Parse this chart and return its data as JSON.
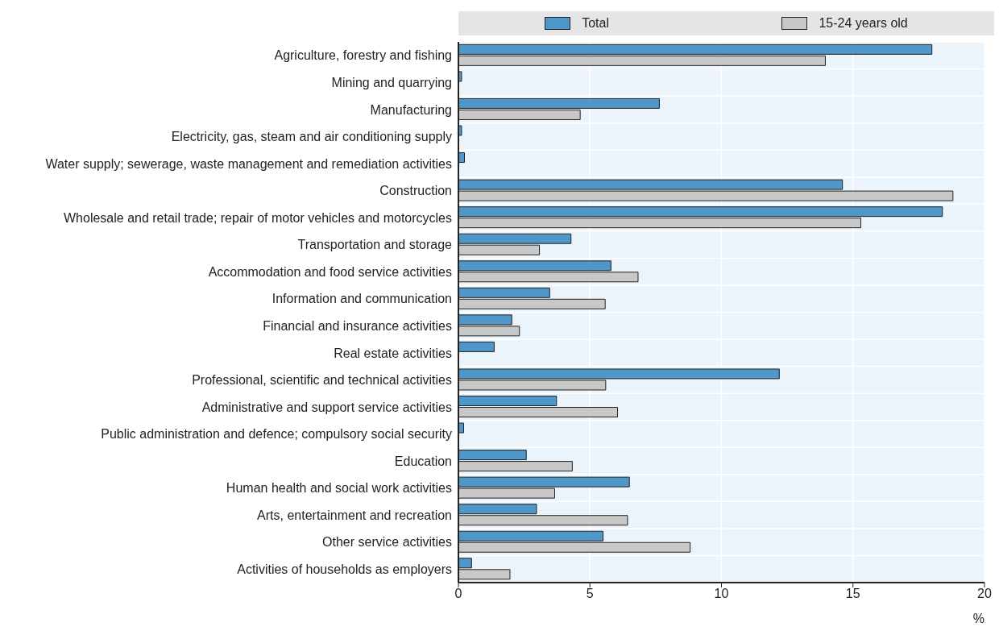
{
  "chart_data": {
    "type": "bar",
    "orientation": "horizontal",
    "xlabel": "%",
    "categories": [
      "Agriculture, forestry and fishing",
      "Mining and quarrying",
      "Manufacturing",
      "Electricity, gas, steam and air conditioning supply",
      "Water supply; sewerage, waste management and remediation activities",
      "Construction",
      "Wholesale and retail trade; repair of motor vehicles and motorcycles",
      "Transportation and storage",
      "Accommodation and food service activities",
      "Information and communication",
      "Financial and insurance activities",
      "Real estate activities",
      "Professional, scientific and technical activities",
      "Administrative and support service activities",
      "Public administration and defence; compulsory social security",
      "Education",
      "Human health and social work activities",
      "Arts, entertainment and recreation",
      "Other service activities",
      "Activities of households as employers"
    ],
    "series": [
      {
        "name": "Total",
        "color": "#4f96c9",
        "values": [
          18.0,
          0.12,
          7.64,
          0.12,
          0.23,
          14.6,
          18.4,
          4.28,
          5.8,
          3.47,
          2.03,
          1.36,
          12.2,
          3.73,
          0.2,
          2.58,
          6.5,
          2.97,
          5.5,
          0.5
        ]
      },
      {
        "name": "15-24 years old",
        "color": "#c8c8c8",
        "values": [
          13.95,
          null,
          4.63,
          null,
          null,
          18.8,
          15.3,
          3.08,
          6.83,
          5.58,
          2.32,
          null,
          5.6,
          6.05,
          null,
          4.33,
          3.66,
          6.43,
          8.81,
          1.96
        ]
      }
    ],
    "xlim": [
      0,
      20
    ],
    "xticks": [
      0,
      5,
      10,
      15,
      20
    ],
    "grid": true,
    "legend": "top"
  }
}
